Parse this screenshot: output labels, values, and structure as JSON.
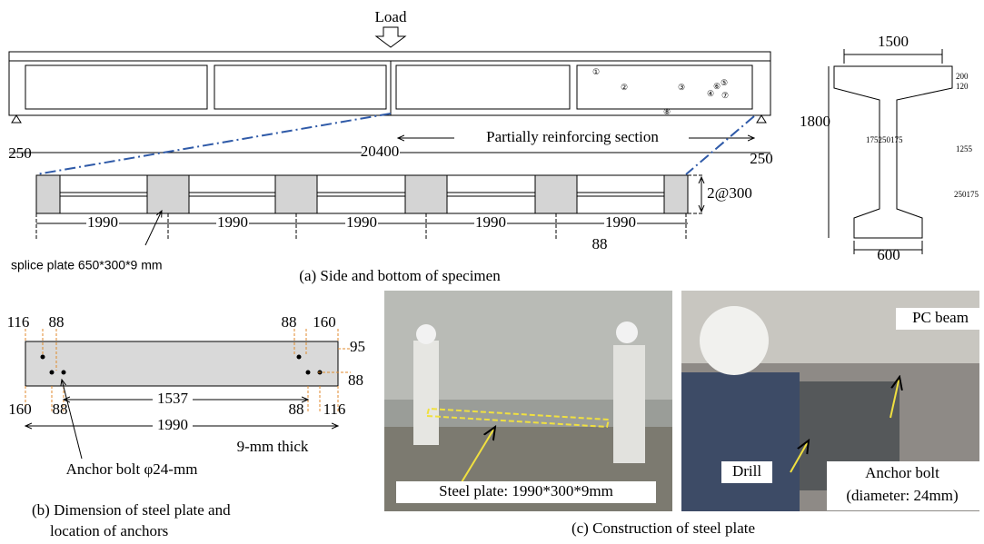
{
  "side": {
    "load": "Load",
    "dim_left": "250",
    "dim_total": "20400",
    "section": "Partially reinforcing section",
    "dim_right": "250",
    "markers": [
      "①",
      "②",
      "③",
      "④",
      "⑤",
      "⑥",
      "⑦",
      "⑧"
    ]
  },
  "bottom": {
    "spacing": "2@300",
    "segments": [
      "1990",
      "1990",
      "1990",
      "1990",
      "1990"
    ],
    "last": "88",
    "splice": "splice plate 650*300*9 mm"
  },
  "cross_section": {
    "width": "1500",
    "height": "1800",
    "base": "600",
    "flange": "200",
    "h_mid": "1255",
    "web": "175250175",
    "bulb": "250175",
    "top_small": "120"
  },
  "caption_a": "(a) Side and bottom of specimen",
  "plate": {
    "top_left": [
      "116",
      "88"
    ],
    "top_right": [
      "88",
      "160"
    ],
    "right": [
      "95",
      "88"
    ],
    "bottom": [
      "160",
      "88",
      "1537",
      "88",
      "116"
    ],
    "total": "1990",
    "thick": "9-mm thick",
    "anchor": "Anchor bolt φ24-mm"
  },
  "caption_b": [
    "(b) Dimension of steel plate and",
    "location of anchors"
  ],
  "photos": {
    "steel": "Steel plate: 1990*300*9mm",
    "pc_beam": "PC beam",
    "drill": "Drill",
    "anchor": [
      "Anchor bolt",
      "(diameter: 24mm)"
    ]
  },
  "caption_c": "(c) Construction of steel plate"
}
